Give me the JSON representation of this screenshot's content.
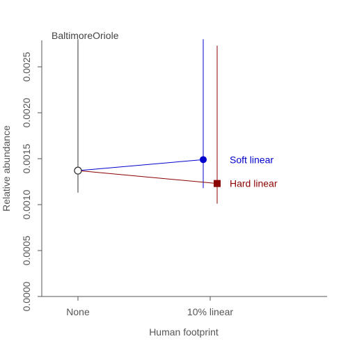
{
  "chart_data": {
    "type": "line",
    "title": "BaltimoreOriole",
    "xlabel": "Human footprint",
    "ylabel": "Relative abundance",
    "categories": [
      "None",
      "10% linear"
    ],
    "yticks": [
      "0.0000",
      "0.0005",
      "0.0010",
      "0.0015",
      "0.0020",
      "0.0025"
    ],
    "ylim": [
      0,
      0.0028
    ],
    "grid": false,
    "colors": {
      "soft": "#0000cc",
      "hard": "#8b0000",
      "axis": "#555555",
      "ref": "#333333"
    },
    "reference": {
      "category": "None",
      "value": 0.00137,
      "lower": 0.00113,
      "upper": 0.0028
    },
    "series": [
      {
        "name": "Soft linear",
        "marker": "circle",
        "values": [
          0.00137,
          0.00149
        ],
        "lower": [
          0.00113,
          0.00118
        ],
        "upper": [
          0.0028,
          0.0028
        ]
      },
      {
        "name": "Hard linear",
        "marker": "square",
        "values": [
          0.00137,
          0.00123
        ],
        "lower": [
          0.00113,
          0.00101
        ],
        "upper": [
          0.0028,
          0.00273
        ]
      }
    ]
  }
}
